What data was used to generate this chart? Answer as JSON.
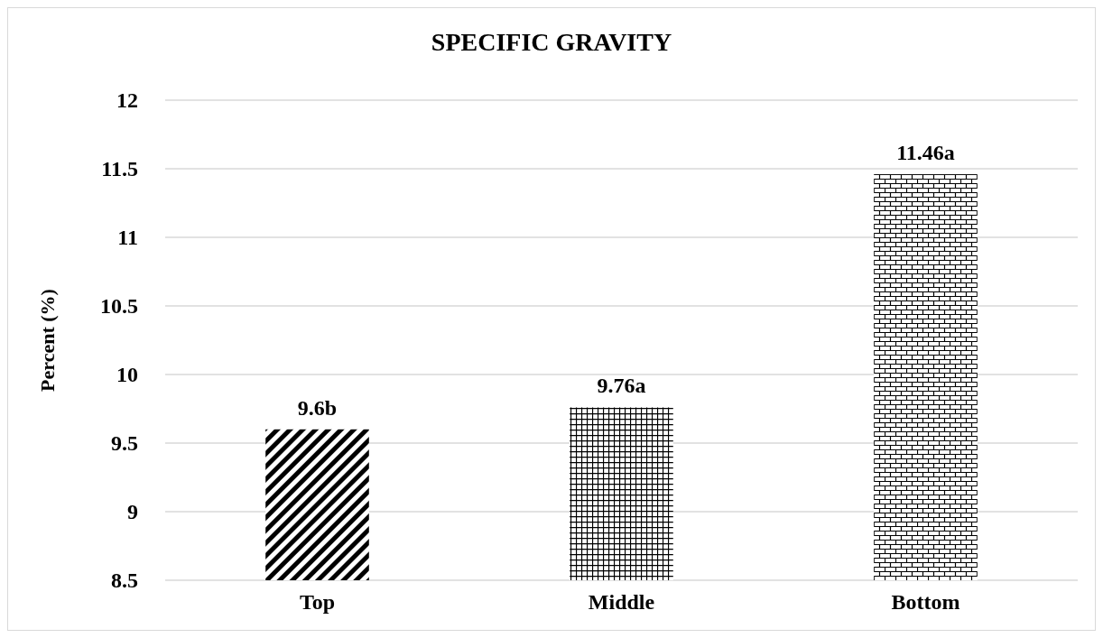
{
  "chart_data": {
    "type": "bar",
    "title": "SPECIFIC GRAVITY",
    "ylabel": "Percent (%)",
    "categories": [
      "Top",
      "Middle",
      "Bottom"
    ],
    "values": [
      9.6,
      9.76,
      11.46
    ],
    "value_labels": [
      "9.6b",
      "9.76a",
      "11.46a"
    ],
    "color": "#000000",
    "ylim": [
      8.5,
      12
    ],
    "yticks": [
      8.5,
      9,
      9.5,
      10,
      10.5,
      11,
      11.5,
      12
    ],
    "grid": "y"
  }
}
